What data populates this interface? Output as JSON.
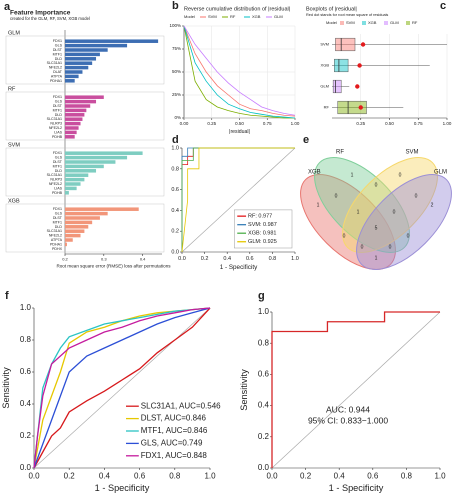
{
  "chart_data": [
    {
      "panel": "a",
      "type": "bar",
      "title": "Feature Importance",
      "subtitle": "created for the GLM, RF, SVM, XGB model",
      "xlabel": "Root mean square error (RMSE) loss after permutations",
      "xlim": [
        0.2,
        0.45
      ],
      "xticks": [
        0.2,
        0.3,
        0.4
      ],
      "groups": [
        {
          "name": "GLM",
          "color": "#3d6eb3",
          "categories": [
            "FDX1",
            "GLS",
            "DLST",
            "MTF1",
            "DLD",
            "SLC31A1",
            "NFE2L2",
            "DLAT",
            "ATP7A",
            "PDHA1"
          ],
          "values": [
            0.44,
            0.36,
            0.31,
            0.29,
            0.28,
            0.27,
            0.26,
            0.245,
            0.235,
            0.225
          ]
        },
        {
          "name": "RF",
          "color": "#c94e9e",
          "categories": [
            "FDX1",
            "GLS",
            "DLST",
            "MTF1",
            "DLD",
            "SLC31A1",
            "NLRP3",
            "NFE2L2",
            "LIAS",
            "PDHB"
          ],
          "values": [
            0.3,
            0.28,
            0.265,
            0.255,
            0.25,
            0.245,
            0.24,
            0.235,
            0.23,
            0.225
          ]
        },
        {
          "name": "SVM",
          "color": "#7ecdc1",
          "categories": [
            "FDX1",
            "GLS",
            "DLST",
            "MTF1",
            "DLD",
            "SLC31A1",
            "NLRP3",
            "NFE2L2",
            "LIAS",
            "PDHB"
          ],
          "values": [
            0.4,
            0.36,
            0.33,
            0.3,
            0.28,
            0.26,
            0.25,
            0.24,
            0.23,
            0.21
          ]
        },
        {
          "name": "XGB",
          "color": "#f2967a",
          "categories": [
            "FDX1",
            "GLS",
            "DLST",
            "MTF1",
            "DLD",
            "SLC31A1",
            "NFE2L2",
            "ATP7A",
            "PDHA1",
            "PDHX"
          ],
          "values": [
            0.39,
            0.31,
            0.29,
            0.27,
            0.26,
            0.25,
            0.24,
            0.22,
            0.205,
            0.2
          ]
        }
      ]
    },
    {
      "panel": "b",
      "type": "line",
      "title": "Reverse cumulative distribution of |residual|",
      "xlabel": "|residual|",
      "legend": "top",
      "legend_title": "Model",
      "x": [
        0,
        0.1,
        0.2,
        0.3,
        0.4,
        0.5,
        0.6,
        0.7,
        0.8,
        0.9,
        1.0
      ],
      "xlim": [
        0,
        1
      ],
      "xticks": [
        {
          "value": 0,
          "label": "0.00"
        },
        {
          "value": 0.25,
          "label": "0.25"
        },
        {
          "value": 0.5,
          "label": "0.50"
        },
        {
          "value": 0.75,
          "label": "0.75"
        },
        {
          "value": 1,
          "label": "1.00"
        }
      ],
      "ylim": [
        0,
        100
      ],
      "yticks": [
        {
          "value": 0,
          "label": "0%"
        },
        {
          "value": 25,
          "label": "25%"
        },
        {
          "value": 50,
          "label": "50%"
        },
        {
          "value": 75,
          "label": "75%"
        },
        {
          "value": 100,
          "label": "100%"
        }
      ],
      "grid": true,
      "series": [
        {
          "name": "SVM",
          "color": "#F8766D",
          "values": [
            100,
            70,
            50,
            35,
            25,
            15,
            10,
            8,
            5,
            3,
            2
          ]
        },
        {
          "name": "RF",
          "color": "#7CAE00",
          "values": [
            100,
            40,
            20,
            12,
            8,
            5,
            3,
            2,
            1,
            0,
            0
          ]
        },
        {
          "name": "XGB",
          "color": "#00BFC4",
          "values": [
            100,
            60,
            40,
            25,
            15,
            10,
            6,
            4,
            2,
            1,
            0
          ]
        },
        {
          "name": "GLM",
          "color": "#C77CFF",
          "values": [
            100,
            80,
            65,
            50,
            38,
            28,
            20,
            12,
            8,
            5,
            3
          ]
        }
      ]
    },
    {
      "panel": "c",
      "type": "box",
      "title": "Boxplots of |residual|",
      "subtitle": "Red dot stands for root mean square of residuals",
      "legend_title": "Model",
      "xlim": [
        0,
        1
      ],
      "xticks": [
        {
          "value": 0.25,
          "label": "0.25"
        },
        {
          "value": 0.5,
          "label": "0.50"
        },
        {
          "value": 0.75,
          "label": "0.75"
        },
        {
          "value": 1,
          "label": "1.00"
        }
      ],
      "grid": true,
      "dot_color": "#e31a1c",
      "series": [
        {
          "name": "SVM",
          "color": "#F8766D",
          "min": 0,
          "q1": 0.03,
          "median": 0.08,
          "q3": 0.2,
          "max": 1.0,
          "rmse": 0.27
        },
        {
          "name": "XGB",
          "color": "#00BFC4",
          "min": 0,
          "q1": 0.02,
          "median": 0.06,
          "q3": 0.14,
          "max": 0.85,
          "rmse": 0.24
        },
        {
          "name": "GLM",
          "color": "#C77CFF",
          "min": 0,
          "q1": 0.01,
          "median": 0.03,
          "q3": 0.08,
          "max": 0.15,
          "rmse": 0.22
        },
        {
          "name": "RF",
          "color": "#7CAE00",
          "min": 0,
          "q1": 0.05,
          "median": 0.14,
          "q3": 0.3,
          "max": 0.62,
          "rmse": 0.25
        }
      ]
    },
    {
      "panel": "d",
      "type": "line",
      "xlabel": "1 - Specificity",
      "legend": "bottom-right",
      "diagonal": true,
      "xlim": [
        0,
        1
      ],
      "xticks": [
        {
          "value": 0,
          "label": "0.0"
        },
        0.2,
        0.4,
        0.6,
        0.8,
        {
          "value": 1,
          "label": "1.0"
        }
      ],
      "ylim": [
        0,
        1
      ],
      "yticks": [
        {
          "value": 0,
          "label": "0.0"
        },
        0.2,
        0.4,
        0.6,
        0.8,
        {
          "value": 1,
          "label": "1.0"
        }
      ],
      "series": [
        {
          "name": "RF: 0.977",
          "color": "#e41a1c",
          "x": [
            0,
            0,
            0.05,
            0.05,
            0.1,
            0.1,
            1
          ],
          "values": [
            0,
            0.84,
            0.84,
            0.92,
            0.92,
            1,
            1
          ]
        },
        {
          "name": "SVM: 0.987",
          "color": "#377eb8",
          "x": [
            0,
            0,
            0.05,
            0.05,
            1
          ],
          "values": [
            0,
            0.92,
            0.92,
            1,
            1
          ]
        },
        {
          "name": "XGB: 0.981",
          "color": "#4daf4a",
          "x": [
            0,
            0,
            0.1,
            0.1,
            1
          ],
          "values": [
            0,
            0.88,
            0.88,
            1,
            1
          ]
        },
        {
          "name": "GLM: 0.925",
          "color": "#e6c800",
          "x": [
            0,
            0.05,
            0.05,
            0.15,
            0.15,
            1
          ],
          "values": [
            0,
            0.5,
            0.8,
            0.8,
            1,
            1
          ]
        }
      ]
    },
    {
      "panel": "e",
      "type": "venn",
      "sets": [
        {
          "name": "RF",
          "color": "#e8756f"
        },
        {
          "name": "SVM",
          "color": "#7fcf9a"
        },
        {
          "name": "XGB",
          "color": "#f6d86b"
        },
        {
          "name": "GLM",
          "color": "#9b8fd6"
        }
      ],
      "region_counts": [
        1,
        0,
        2,
        1,
        0,
        0,
        0,
        0,
        0,
        1,
        0,
        1,
        0,
        0,
        5
      ]
    },
    {
      "panel": "f",
      "type": "line",
      "xlabel": "1 - Specificity",
      "ylabel": "Sensitivity",
      "legend": "bottom-right",
      "diagonal": true,
      "xlim": [
        0,
        1
      ],
      "xticks": [
        {
          "value": 0,
          "label": "0.0"
        },
        0.2,
        0.4,
        0.6,
        0.8,
        {
          "value": 1,
          "label": "1.0"
        }
      ],
      "ylim": [
        0,
        1
      ],
      "yticks": [
        {
          "value": 0,
          "label": "0.0"
        },
        0.2,
        0.4,
        0.6,
        0.8,
        {
          "value": 1,
          "label": "1.0"
        }
      ],
      "series": [
        {
          "name": "SLC31A1, AUC=0.546",
          "color": "#d7191c",
          "x": [
            0,
            0.05,
            0.1,
            0.15,
            0.2,
            0.3,
            0.4,
            0.5,
            0.6,
            0.7,
            0.8,
            0.9,
            1
          ],
          "values": [
            0,
            0.1,
            0.2,
            0.25,
            0.35,
            0.42,
            0.48,
            0.55,
            0.62,
            0.72,
            0.8,
            0.88,
            1
          ]
        },
        {
          "name": "DLST, AUC=0.846",
          "color": "#e6c800",
          "x": [
            0,
            0.05,
            0.1,
            0.15,
            0.2,
            0.3,
            0.4,
            0.5,
            0.6,
            0.7,
            0.8,
            0.9,
            1
          ],
          "values": [
            0,
            0.3,
            0.45,
            0.6,
            0.78,
            0.85,
            0.88,
            0.92,
            0.95,
            0.97,
            0.98,
            0.99,
            1
          ]
        },
        {
          "name": "MTF1, AUC=0.846",
          "color": "#2bc4c4",
          "x": [
            0,
            0.05,
            0.1,
            0.15,
            0.2,
            0.3,
            0.4,
            0.5,
            0.6,
            0.7,
            0.8,
            0.9,
            1
          ],
          "values": [
            0,
            0.5,
            0.65,
            0.75,
            0.82,
            0.86,
            0.9,
            0.92,
            0.94,
            0.96,
            0.98,
            0.99,
            1
          ]
        },
        {
          "name": "GLS, AUC=0.749",
          "color": "#2c4fd6",
          "x": [
            0,
            0.05,
            0.1,
            0.15,
            0.2,
            0.3,
            0.4,
            0.5,
            0.6,
            0.7,
            0.8,
            0.9,
            1
          ],
          "values": [
            0,
            0.15,
            0.3,
            0.45,
            0.6,
            0.7,
            0.75,
            0.8,
            0.85,
            0.9,
            0.94,
            0.97,
            1
          ]
        },
        {
          "name": "FDX1, AUC=0.848",
          "color": "#c51b9e",
          "x": [
            0,
            0.02,
            0.05,
            0.1,
            0.2,
            0.3,
            0.4,
            0.5,
            0.6,
            0.7,
            0.8,
            0.9,
            1
          ],
          "values": [
            0,
            0.2,
            0.45,
            0.65,
            0.75,
            0.8,
            0.85,
            0.88,
            0.92,
            0.95,
            0.97,
            0.99,
            1
          ]
        }
      ]
    },
    {
      "panel": "g",
      "type": "line",
      "xlabel": "1 - Specificity",
      "ylabel": "Sensitivity",
      "diagonal": true,
      "annotations": [
        "AUC: 0.944",
        "95% CI: 0.833−1.000"
      ],
      "annotation_color": "#d62728",
      "xlim": [
        0,
        1
      ],
      "xticks": [
        {
          "value": 0,
          "label": "0.0"
        },
        0.2,
        0.4,
        0.6,
        0.8,
        {
          "value": 1,
          "label": "1.0"
        }
      ],
      "ylim": [
        0,
        1
      ],
      "yticks": [
        {
          "value": 0,
          "label": "0.0"
        },
        0.2,
        0.4,
        0.6,
        0.8,
        {
          "value": 1,
          "label": "1.0"
        }
      ],
      "series": [
        {
          "color": "#d62728",
          "x": [
            0,
            0,
            0.33,
            0.33,
            0.67,
            0.67,
            1
          ],
          "values": [
            0,
            0.875,
            0.875,
            0.9375,
            0.9375,
            1,
            1
          ]
        }
      ]
    }
  ]
}
